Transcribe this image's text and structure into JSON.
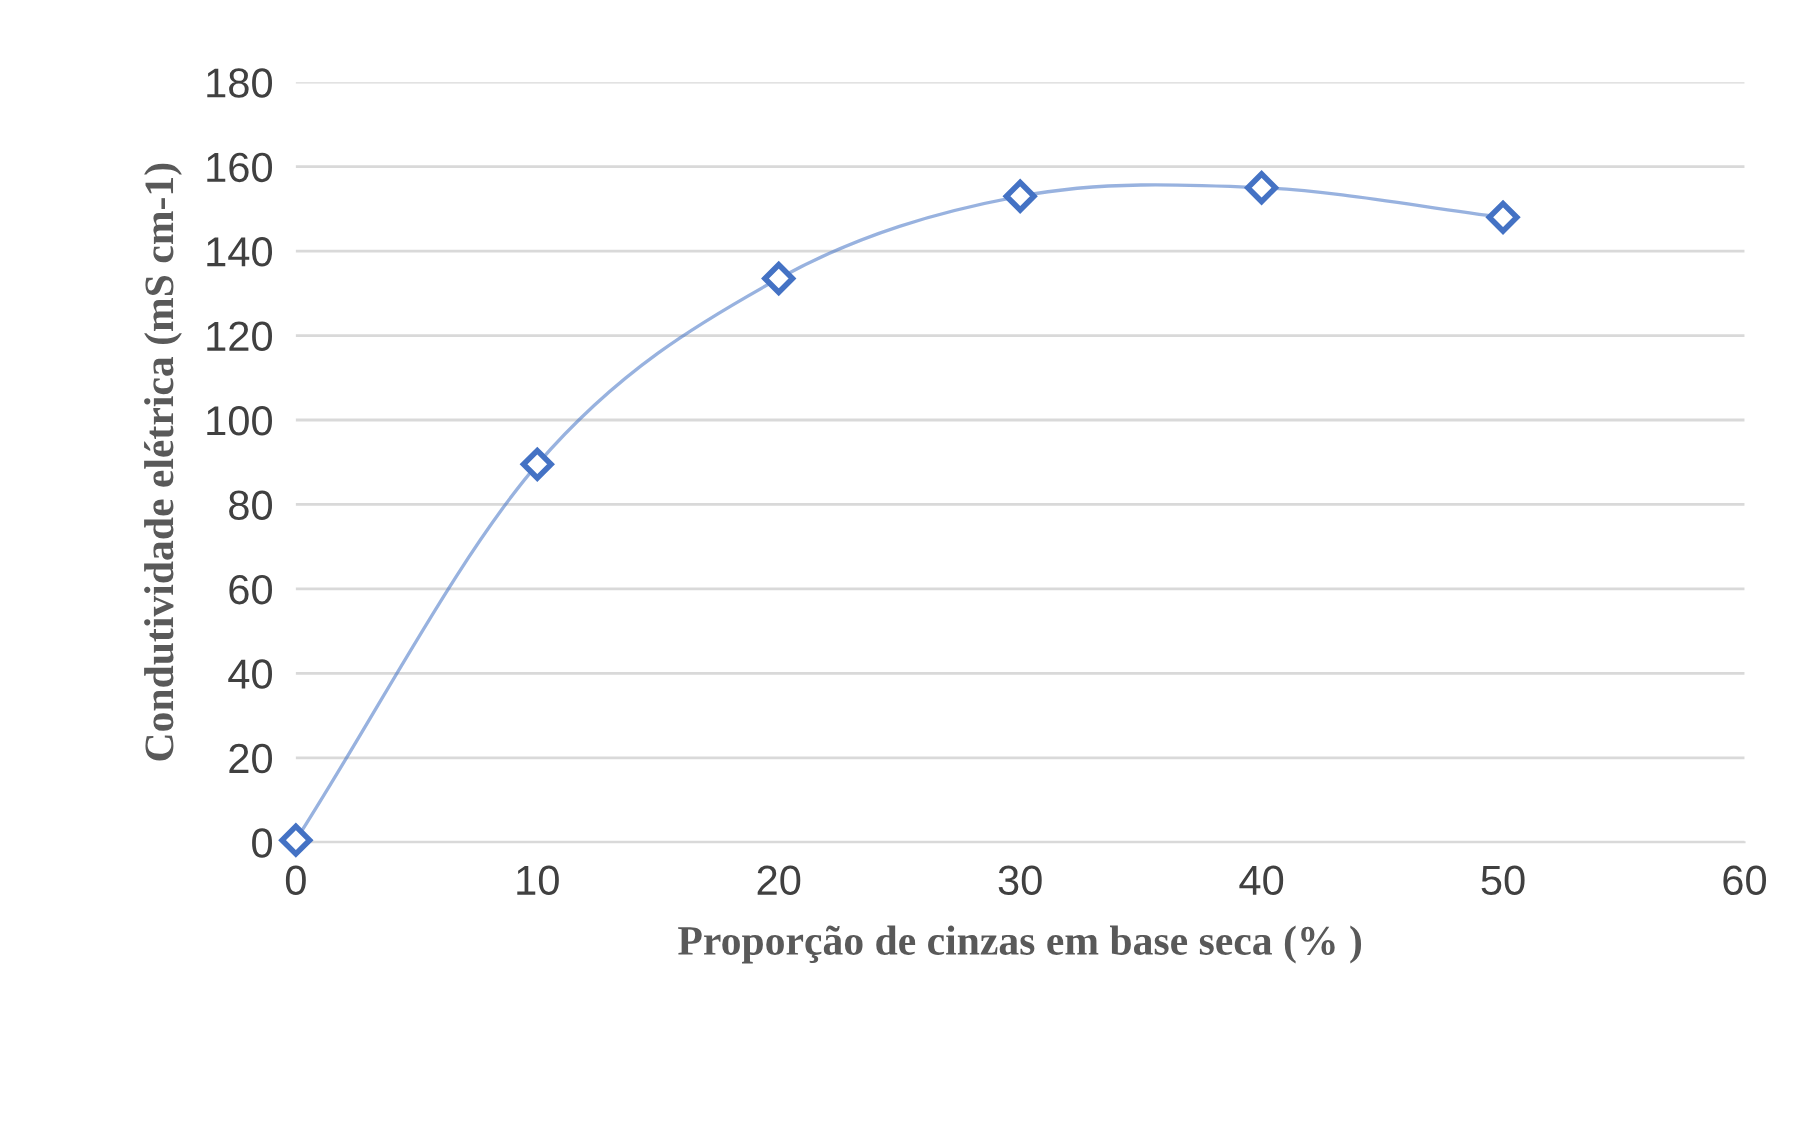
{
  "chart_data": {
    "type": "line",
    "xlabel": "Proporção de cinzas em base seca (% )",
    "ylabel": "Condutividade elétrica (mS cm-1)",
    "x": [
      0,
      10,
      20,
      30,
      40,
      50
    ],
    "series": [
      {
        "color": "#4472c4",
        "values": [
          0.5,
          89.5,
          133.5,
          153,
          155,
          148
        ]
      }
    ],
    "xlim": [
      0,
      60
    ],
    "xticks": [
      0,
      10,
      20,
      30,
      40,
      50,
      60
    ],
    "ylim": [
      0,
      180
    ],
    "yticks": [
      0,
      20,
      40,
      60,
      80,
      100,
      120,
      140,
      160,
      180
    ],
    "grid": "y",
    "marker": "diamond",
    "line_style": "solid",
    "legend": false
  }
}
